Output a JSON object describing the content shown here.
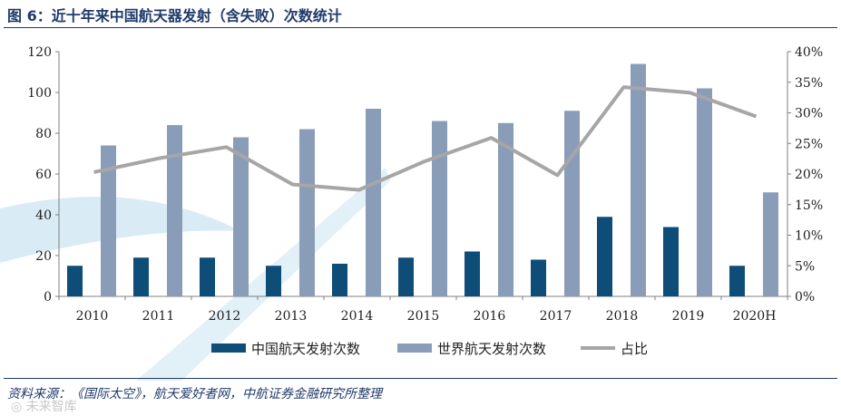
{
  "title": "图 6：近十年来中国航天器发射（含失败）次数统计",
  "source": "资料来源：《国际太空》，航天爱好者网，中航证券金融研究所整理",
  "watermark": "◎ 未来智库",
  "colors": {
    "china": "#0e4d78",
    "world": "#8a9db8",
    "ratio": "#a6a6a6",
    "axis": "#7f7f7f",
    "text": "#1f1f1f",
    "wm": "#cfe6f3"
  },
  "chart_data": {
    "type": "bar",
    "categories": [
      "2010",
      "2011",
      "2012",
      "2013",
      "2014",
      "2015",
      "2016",
      "2017",
      "2018",
      "2019",
      "2020H"
    ],
    "series": [
      {
        "name": "中国航天发射次数",
        "kind": "bar",
        "axis": "left",
        "values": [
          15,
          19,
          19,
          15,
          16,
          19,
          22,
          18,
          39,
          34,
          15
        ]
      },
      {
        "name": "世界航天发射次数",
        "kind": "bar",
        "axis": "left",
        "values": [
          74,
          84,
          78,
          82,
          92,
          86,
          85,
          91,
          114,
          102,
          51
        ]
      },
      {
        "name": "占比",
        "kind": "line",
        "axis": "right",
        "values": [
          0.203,
          0.226,
          0.244,
          0.183,
          0.174,
          0.221,
          0.259,
          0.198,
          0.342,
          0.333,
          0.294
        ]
      }
    ],
    "left_axis": {
      "min": 0,
      "max": 120,
      "ticks": [
        0,
        20,
        40,
        60,
        80,
        100,
        120
      ]
    },
    "right_axis": {
      "min": 0,
      "max": 0.4,
      "ticks": [
        0,
        0.05,
        0.1,
        0.15,
        0.2,
        0.25,
        0.3,
        0.35,
        0.4
      ],
      "tick_labels": [
        "0%",
        "5%",
        "10%",
        "15%",
        "20%",
        "25%",
        "30%",
        "35%",
        "40%"
      ]
    },
    "legend": [
      "中国航天发射次数",
      "世界航天发射次数",
      "占比"
    ],
    "legend_position": "bottom",
    "grid": false
  }
}
